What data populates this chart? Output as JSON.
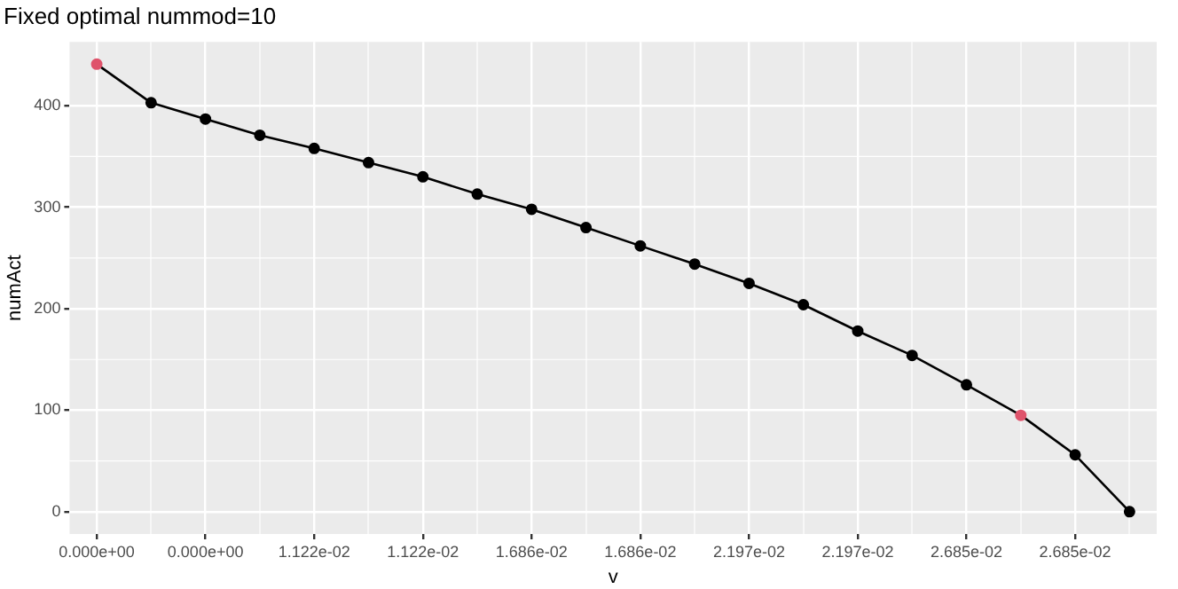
{
  "chart_data": {
    "type": "line",
    "title": "Fixed optimal nummod=10",
    "xlabel": "v",
    "ylabel": "numAct",
    "categories": [
      "0.000e+00",
      null,
      "0.000e+00",
      null,
      "1.122e-02",
      null,
      "1.122e-02",
      null,
      "1.686e-02",
      null,
      "1.686e-02",
      null,
      "2.197e-02",
      null,
      "2.197e-02",
      null,
      "2.685e-02",
      null,
      "2.685e-02",
      null
    ],
    "series": [
      {
        "color": "#000000",
        "values": [
          441,
          403,
          387,
          371,
          358,
          344,
          330,
          313,
          298,
          280,
          262,
          244,
          225,
          204,
          178,
          154,
          125,
          95,
          56,
          0
        ],
        "colors": [
          "#df536b",
          "#000000",
          "#000000",
          "#000000",
          "#000000",
          "#000000",
          "#000000",
          "#000000",
          "#000000",
          "#000000",
          "#000000",
          "#000000",
          "#000000",
          "#000000",
          "#000000",
          "#000000",
          "#000000",
          "#df536b",
          "#000000",
          "#000000"
        ]
      }
    ],
    "ylim": [
      -22,
      463
    ],
    "yticks": [
      0,
      100,
      200,
      300,
      400
    ],
    "grid": true,
    "marker": "circle",
    "legend": false
  }
}
